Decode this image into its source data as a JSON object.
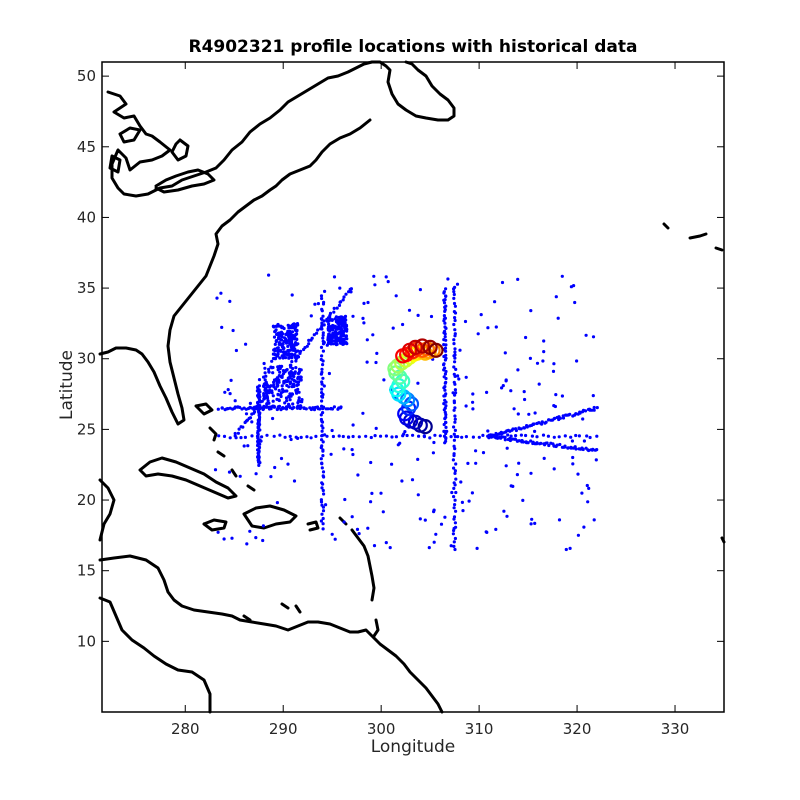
{
  "chart_data": {
    "type": "scatter",
    "title": "R4902321 profile locations with historical data",
    "xlabel": "Longitude",
    "ylabel": "Latitude",
    "xlim": [
      271.5,
      335
    ],
    "ylim": [
      5,
      51
    ],
    "xticks": [
      280,
      290,
      300,
      310,
      320,
      330
    ],
    "yticks": [
      10,
      15,
      20,
      25,
      30,
      35,
      40,
      45,
      50
    ],
    "grid": false,
    "legend": "none",
    "colors": {
      "historical": "#0000ff",
      "coastline": "#000000",
      "profile_colormap": [
        "#00008f",
        "#0000ff",
        "#00ffff",
        "#7fff7f",
        "#ffff00",
        "#ff7f00",
        "#ff0000",
        "#7f0000"
      ]
    },
    "series": [
      {
        "marker": "dot",
        "clusters": [
          {
            "lon": [
              289,
              291.5
            ],
            "lat": [
              30,
              32.5
            ]
          },
          {
            "lon": [
              294.5,
              296.5
            ],
            "lat": [
              31,
              33
            ]
          },
          {
            "lon": [
              288,
              292
            ],
            "lat": [
              26.5,
              29.5
            ]
          }
        ],
        "tracks": [
          {
            "lon": [
              283.5,
              322
            ],
            "lat": [
              24.5,
              24.5
            ]
          },
          {
            "lon": [
              283.5,
              296
            ],
            "lat": [
              26.5,
              26.5
            ]
          },
          {
            "lon": [
              294,
              294
            ],
            "lat": [
              18,
              34.5
            ]
          },
          {
            "lon": [
              307.5,
              307.5
            ],
            "lat": [
              16.5,
              35
            ]
          },
          {
            "lon": [
              306.5,
              306.5
            ],
            "lat": [
              24,
              35
            ]
          },
          {
            "lon": [
              311,
              322
            ],
            "lat": [
              24.5,
              26.5
            ]
          },
          {
            "lon": [
              311,
              322
            ],
            "lat": [
              24.5,
              23.5
            ]
          },
          {
            "lon": [
              285,
              297
            ],
            "lat": [
              24.5,
              35
            ]
          },
          {
            "lon": [
              287.5,
              287.5
            ],
            "lat": [
              22.5,
              28
            ]
          }
        ],
        "scattered_bounds": {
          "lon": [
            283,
            322
          ],
          "lat": [
            16.5,
            36
          ]
        }
      },
      {
        "marker": "circle",
        "colormap": "jet",
        "points": [
          [
            304.5,
            25.2
          ],
          [
            304,
            25.3
          ],
          [
            303.5,
            25.5
          ],
          [
            303,
            25.6
          ],
          [
            302.6,
            25.8
          ],
          [
            302.4,
            26.1
          ],
          [
            302.8,
            26.5
          ],
          [
            303.1,
            26.8
          ],
          [
            302.7,
            27.1
          ],
          [
            302.3,
            27.3
          ],
          [
            301.8,
            27.5
          ],
          [
            301.6,
            27.8
          ],
          [
            301.8,
            28.1
          ],
          [
            302.2,
            28.4
          ],
          [
            301.9,
            28.7
          ],
          [
            301.5,
            29
          ],
          [
            301.4,
            29.3
          ],
          [
            301.7,
            29.5
          ],
          [
            302.1,
            29.7
          ],
          [
            302.5,
            29.9
          ],
          [
            302.9,
            30.1
          ],
          [
            303.3,
            30.3
          ],
          [
            303.7,
            30.4
          ],
          [
            304.1,
            30.5
          ],
          [
            304.5,
            30.4
          ],
          [
            304.9,
            30.5
          ],
          [
            305.3,
            30.6
          ],
          [
            304.7,
            30.7
          ],
          [
            304.2,
            30.6
          ],
          [
            303.7,
            30.7
          ],
          [
            303.2,
            30.5
          ],
          [
            302.6,
            30.3
          ],
          [
            302.2,
            30.2
          ],
          [
            302.9,
            30.6
          ],
          [
            303.5,
            30.8
          ],
          [
            304.2,
            30.9
          ],
          [
            305,
            30.8
          ],
          [
            305.6,
            30.6
          ]
        ]
      }
    ]
  }
}
